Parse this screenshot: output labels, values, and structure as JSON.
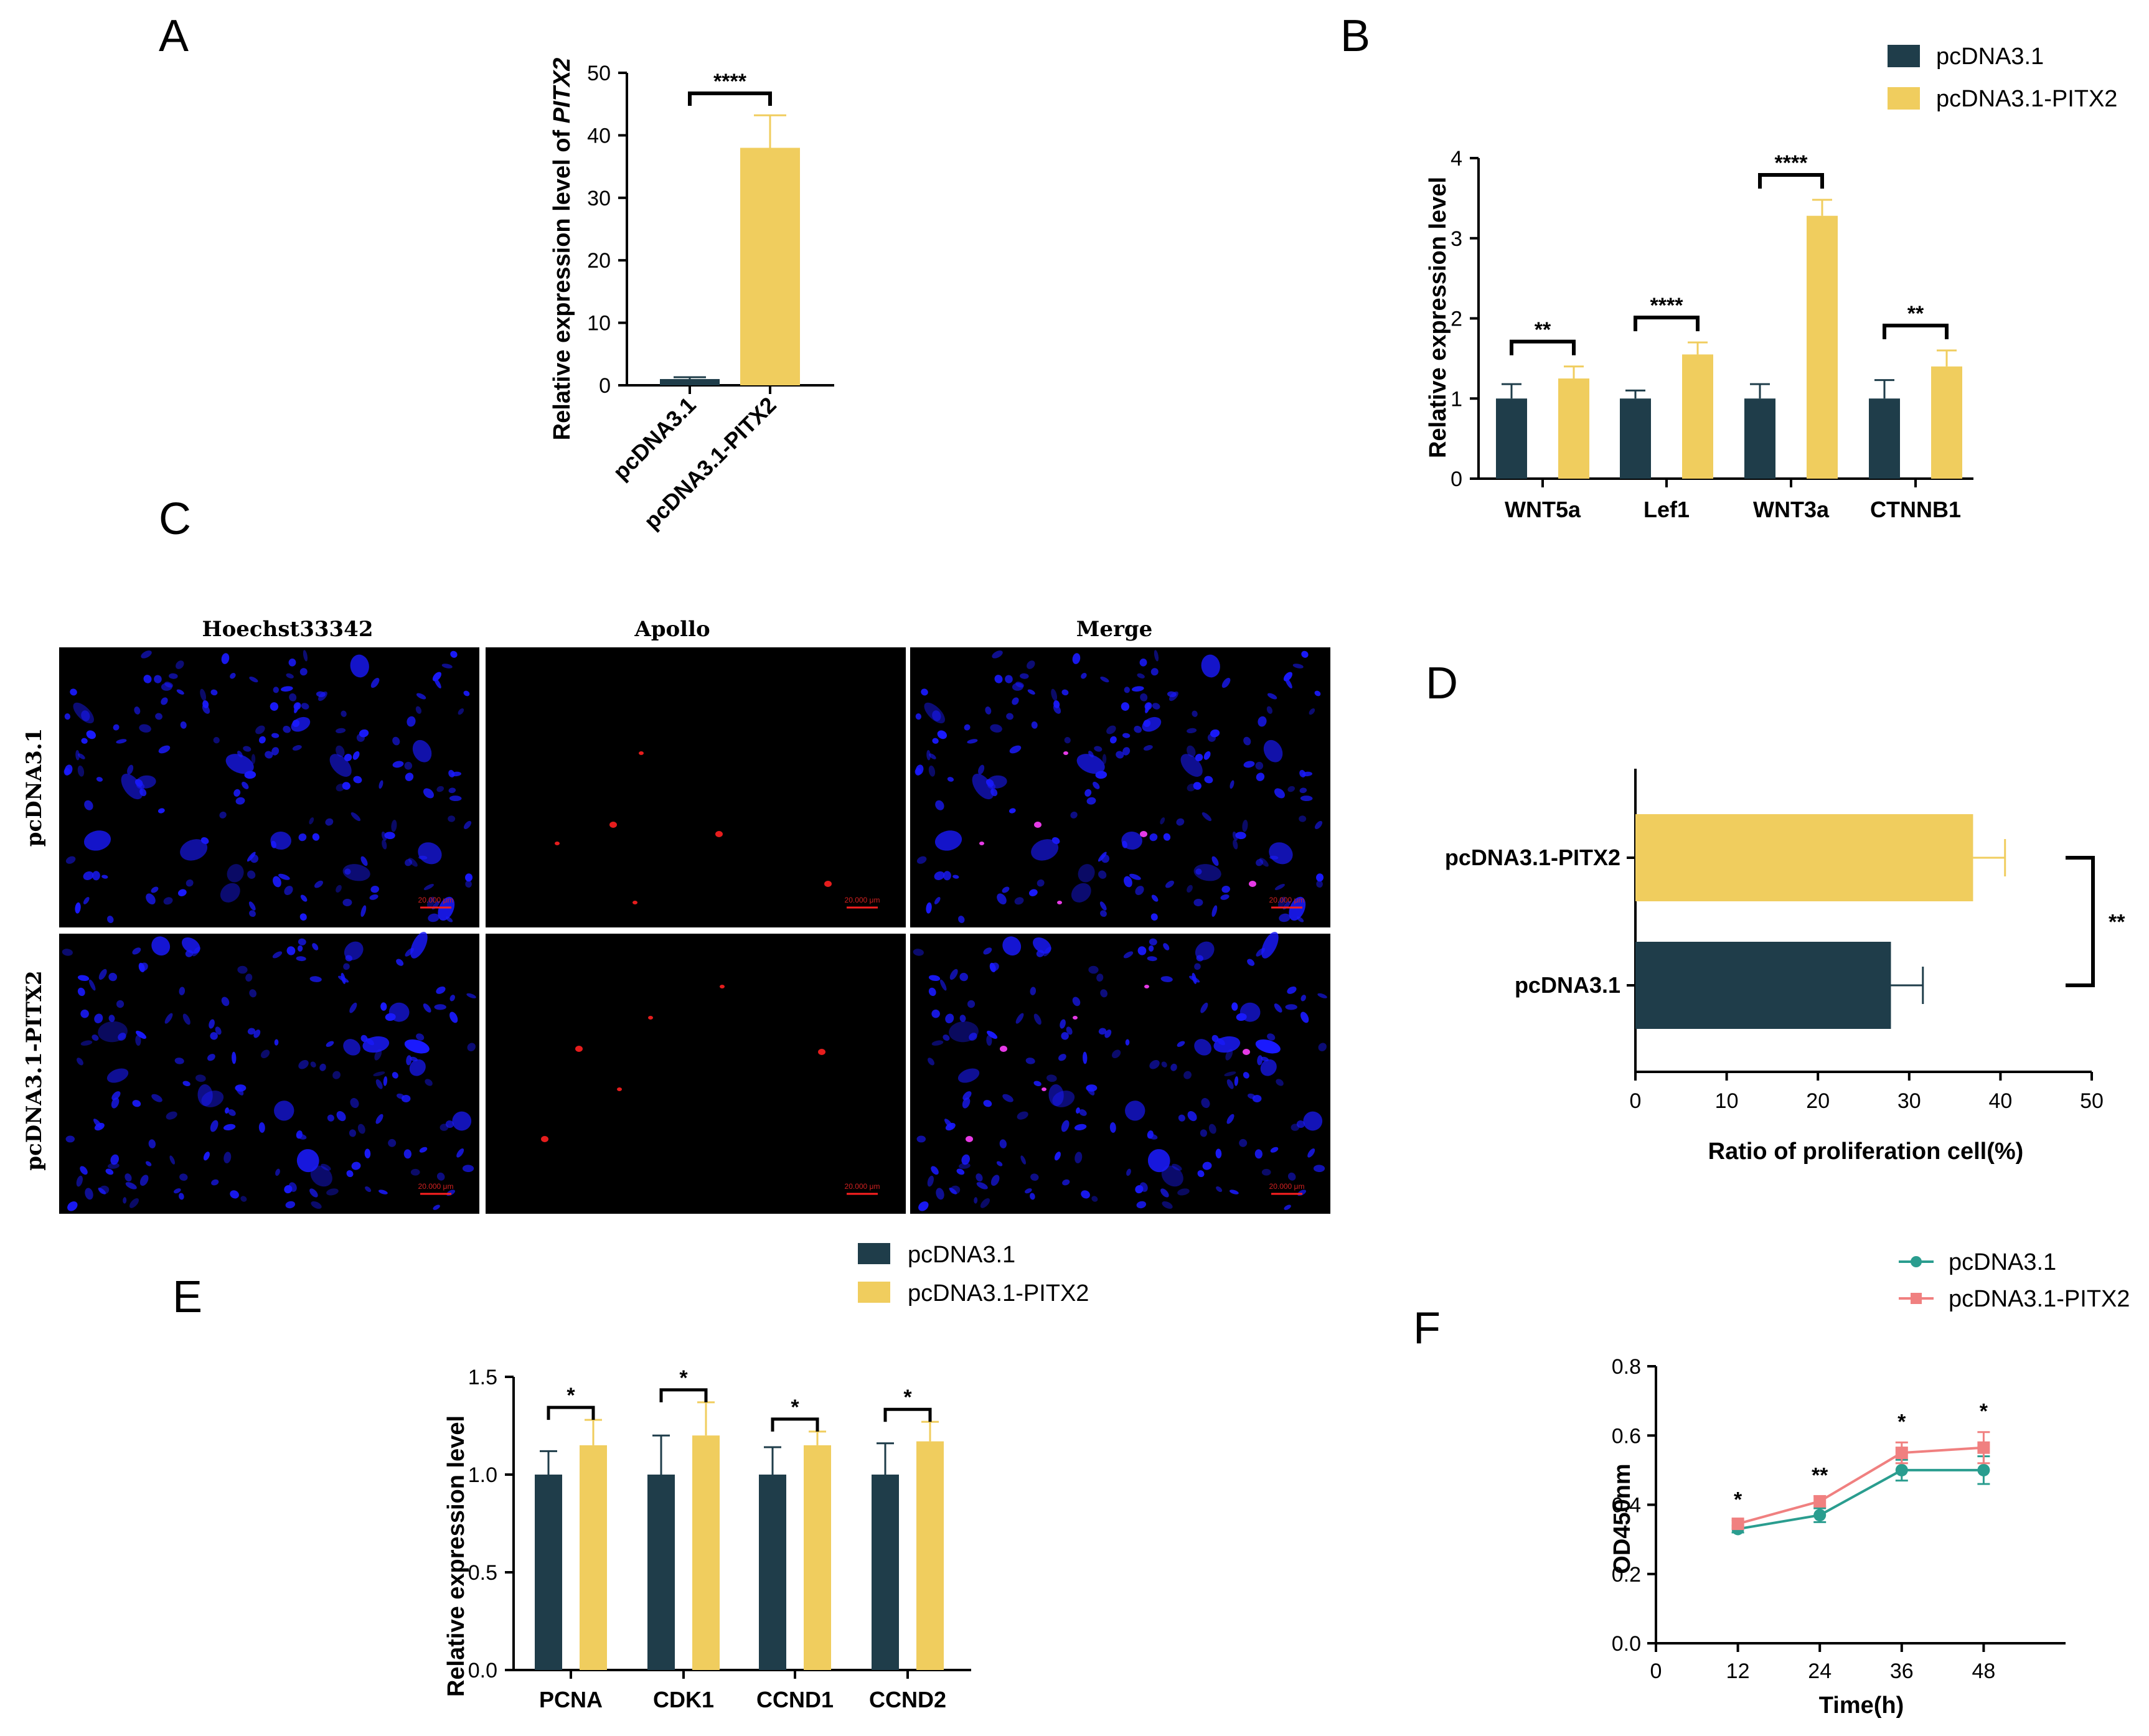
{
  "colors": {
    "control": "#1f3d4a",
    "pitx2": "#f0cd5e",
    "line_control": "#2a9d8f",
    "line_pitx2": "#f08080",
    "nuclei": "#1a1aff",
    "apollo": "#ff2020",
    "micro_bg": "#000000"
  },
  "panels": {
    "A": {
      "letter": "A"
    },
    "B": {
      "letter": "B"
    },
    "C": {
      "letter": "C"
    },
    "D": {
      "letter": "D"
    },
    "E": {
      "letter": "E"
    },
    "F": {
      "letter": "F"
    }
  },
  "microscopy": {
    "columns": [
      "Hoechst33342",
      "Apollo",
      "Merge"
    ],
    "rows": [
      "pcDNA3.1",
      "pcDNA3.1-PITX2"
    ],
    "scale_label": "20.000 μm"
  },
  "chart_data": [
    {
      "id": "A",
      "type": "bar",
      "categories": [
        "pcDNA3.1",
        "pcDNA3.1-PITX2"
      ],
      "values": [
        1,
        38
      ],
      "errors": [
        0.3,
        5.2
      ],
      "ylabel_prefix": "Relative expression level of ",
      "ylabel_gene": "PITX2",
      "ylim": [
        0,
        50
      ],
      "yticks": [
        0,
        10,
        20,
        30,
        40,
        50
      ],
      "significance": [
        {
          "pair": [
            0,
            1
          ],
          "label": "****"
        }
      ]
    },
    {
      "id": "B",
      "type": "bar",
      "categories": [
        "WNT5a",
        "Lef1",
        "WNT3a",
        "CTNNB1"
      ],
      "series": [
        {
          "name": "pcDNA3.1",
          "values": [
            1.0,
            1.0,
            1.0,
            1.0
          ],
          "errors": [
            0.18,
            0.1,
            0.18,
            0.23
          ]
        },
        {
          "name": "pcDNA3.1-PITX2",
          "values": [
            1.25,
            1.55,
            3.28,
            1.4
          ],
          "errors": [
            0.15,
            0.15,
            0.2,
            0.2
          ]
        }
      ],
      "ylabel": "Relative expression level",
      "ylim": [
        0,
        4
      ],
      "yticks": [
        0,
        1,
        2,
        3,
        4
      ],
      "significance": [
        "**",
        "****",
        "****",
        "**"
      ],
      "legend": "top-right"
    },
    {
      "id": "D",
      "type": "bar",
      "orientation": "horizontal",
      "categories": [
        "pcDNA3.1-PITX2",
        "pcDNA3.1"
      ],
      "values": [
        37,
        28
      ],
      "errors": [
        3.5,
        3.5
      ],
      "xlabel": "Ratio of proliferation cell(%)",
      "xlim": [
        0,
        50
      ],
      "xticks": [
        0,
        10,
        20,
        30,
        40,
        50
      ],
      "significance": "**"
    },
    {
      "id": "E",
      "type": "bar",
      "categories": [
        "PCNA",
        "CDK1",
        "CCND1",
        "CCND2"
      ],
      "series": [
        {
          "name": "pcDNA3.1",
          "values": [
            1.0,
            1.0,
            1.0,
            1.0
          ],
          "errors": [
            0.12,
            0.2,
            0.14,
            0.16
          ]
        },
        {
          "name": "pcDNA3.1-PITX2",
          "values": [
            1.15,
            1.2,
            1.15,
            1.17
          ],
          "errors": [
            0.13,
            0.17,
            0.07,
            0.1
          ]
        }
      ],
      "ylabel": "Relative expression level",
      "ylim": [
        0,
        1.5
      ],
      "yticks": [
        "0.0",
        "0.5",
        "1.0",
        "1.5"
      ],
      "significance": [
        "*",
        "*",
        "*",
        "*"
      ],
      "legend": "top"
    },
    {
      "id": "F",
      "type": "line",
      "x": [
        12,
        24,
        36,
        48
      ],
      "series": [
        {
          "name": "pcDNA3.1",
          "values": [
            0.33,
            0.37,
            0.5,
            0.5
          ],
          "errors": [
            0.01,
            0.02,
            0.03,
            0.04
          ]
        },
        {
          "name": "pcDNA3.1-PITX2",
          "values": [
            0.345,
            0.41,
            0.55,
            0.565
          ],
          "errors": [
            0.01,
            0.015,
            0.03,
            0.045
          ]
        }
      ],
      "xlabel": "Time(h)",
      "ylabel": "OD450nm",
      "xlim": [
        0,
        60
      ],
      "xticks": [
        0,
        12,
        24,
        36,
        48
      ],
      "ylim": [
        0,
        0.8
      ],
      "yticks": [
        "0.0",
        "0.2",
        "0.4",
        "0.6",
        "0.8"
      ],
      "significance": [
        "*",
        "**",
        "*",
        "*"
      ],
      "legend": "top-right"
    }
  ]
}
